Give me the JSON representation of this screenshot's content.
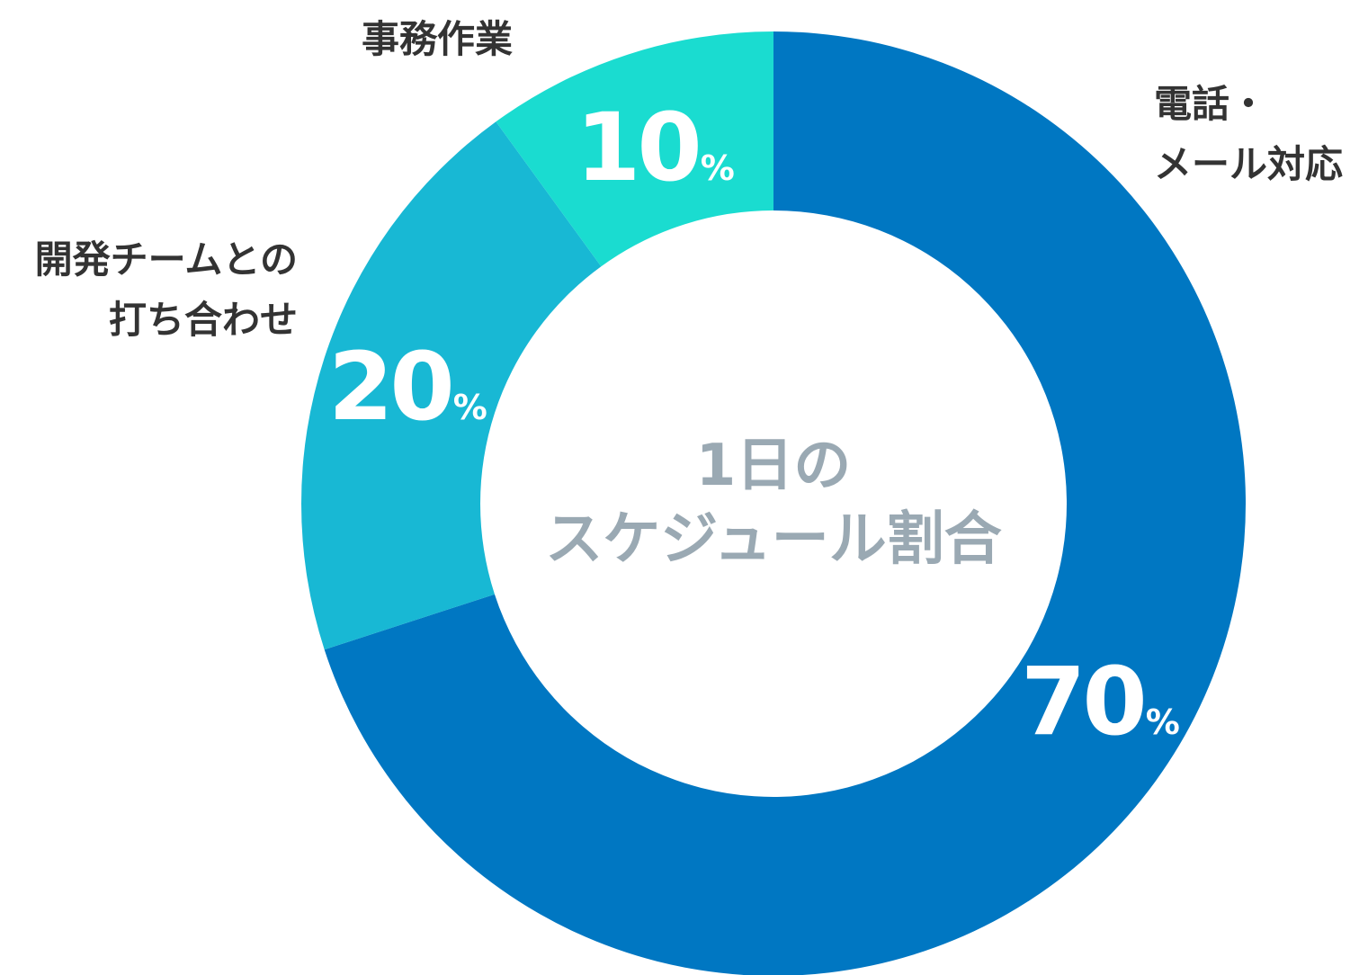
{
  "chart_data": {
    "type": "pie",
    "donut": true,
    "title": "1日のスケジュール割合",
    "title_lines": [
      "1日の",
      "スケジュール割合"
    ],
    "unit": "%",
    "slices": [
      {
        "label": "電話・メール対応",
        "label_lines": [
          "電話・",
          "メール対応"
        ],
        "value": 70,
        "color": "#0077c2"
      },
      {
        "label": "開発チームとの打ち合わせ",
        "label_lines": [
          "開発チームとの",
          "打ち合わせ"
        ],
        "value": 20,
        "color": "#18b8d4"
      },
      {
        "label": "事務作業",
        "label_lines": [
          "事務作業"
        ],
        "value": 10,
        "color": "#1adcd0"
      }
    ]
  }
}
